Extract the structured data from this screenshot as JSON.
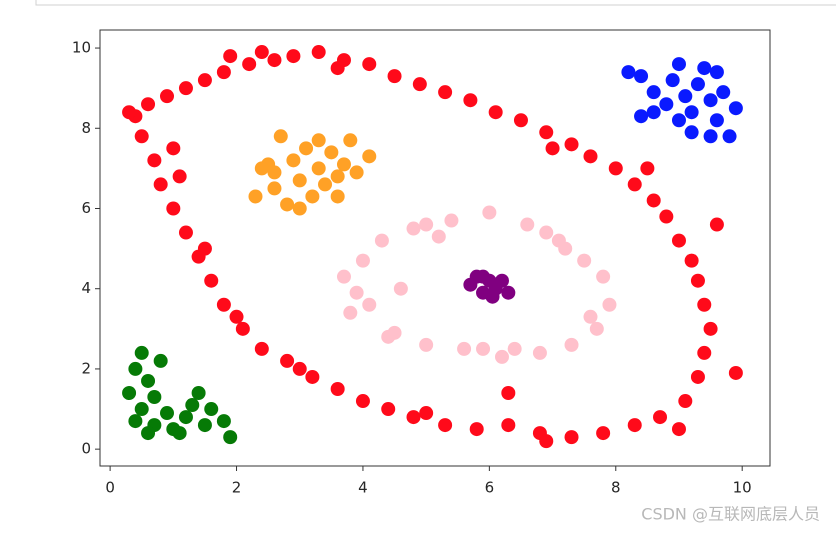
{
  "chart_data": {
    "type": "scatter",
    "xlim": [
      -0.16,
      10.44
    ],
    "ylim": [
      -0.42,
      10.45
    ],
    "xticks": [
      0,
      2,
      4,
      6,
      8,
      10
    ],
    "yticks": [
      0,
      2,
      4,
      6,
      8,
      10
    ],
    "series": [
      {
        "color": "#ff0a1a",
        "x": [
          0.4,
          0.6,
          0.9,
          1.2,
          1.5,
          1.8,
          2.2,
          2.6,
          2.9,
          3.3,
          3.7,
          4.1,
          4.5,
          4.9,
          5.3,
          5.7,
          6.1,
          6.5,
          6.9,
          7.3,
          7.6,
          8.0,
          8.3,
          8.6,
          8.8,
          9.0,
          9.2,
          9.3,
          9.4,
          9.5,
          9.4,
          9.3,
          9.1,
          8.7,
          8.3,
          7.8,
          7.3,
          6.8,
          6.3,
          5.8,
          5.3,
          4.8,
          4.4,
          4.0,
          3.6,
          3.2,
          2.8,
          2.4,
          2.1,
          1.8,
          1.6,
          1.4,
          1.2,
          1.0,
          0.8,
          0.7,
          0.5,
          1.0,
          1.1,
          1.5,
          2.0,
          3.0,
          5.0,
          6.9,
          8.5,
          9.6,
          9.9,
          6.3,
          2.4,
          1.9,
          3.6,
          7.0,
          9.0,
          0.3
        ],
        "values": [
          8.3,
          8.6,
          8.8,
          9.0,
          9.2,
          9.4,
          9.6,
          9.7,
          9.8,
          9.9,
          9.7,
          9.6,
          9.3,
          9.1,
          8.9,
          8.7,
          8.4,
          8.2,
          7.9,
          7.6,
          7.3,
          7.0,
          6.6,
          6.2,
          5.8,
          5.2,
          4.7,
          4.2,
          3.6,
          3.0,
          2.4,
          1.8,
          1.2,
          0.8,
          0.6,
          0.4,
          0.3,
          0.4,
          0.6,
          0.5,
          0.6,
          0.8,
          1.0,
          1.2,
          1.5,
          1.8,
          2.2,
          2.5,
          3.0,
          3.6,
          4.2,
          4.8,
          5.4,
          6.0,
          6.6,
          7.2,
          7.8,
          7.5,
          6.8,
          5.0,
          3.3,
          2.0,
          0.9,
          0.2,
          7.0,
          5.6,
          1.9,
          1.4,
          9.9,
          9.8,
          9.5,
          7.5,
          0.5,
          8.4
        ]
      },
      {
        "color": "#ffc0cb",
        "x": [
          4.0,
          4.1,
          4.3,
          4.5,
          4.8,
          5.0,
          5.4,
          5.6,
          6.0,
          6.2,
          6.6,
          6.8,
          7.1,
          7.3,
          7.5,
          7.7,
          7.8,
          7.9,
          3.9,
          3.8,
          4.6,
          5.2,
          6.9,
          7.6,
          5.9,
          4.4,
          3.7,
          6.4,
          7.2,
          5.0
        ],
        "values": [
          4.7,
          3.6,
          5.2,
          2.9,
          5.5,
          2.6,
          5.7,
          2.5,
          5.9,
          2.3,
          5.6,
          2.4,
          5.2,
          2.6,
          4.7,
          3.0,
          4.3,
          3.6,
          3.9,
          3.4,
          4.0,
          5.3,
          5.4,
          3.3,
          2.5,
          2.8,
          4.3,
          2.5,
          5.0,
          5.6
        ]
      },
      {
        "color": "#ffa126",
        "x": [
          2.3,
          2.5,
          2.6,
          2.7,
          2.8,
          2.9,
          3.0,
          3.1,
          3.2,
          3.3,
          3.4,
          3.5,
          3.6,
          3.7,
          3.8,
          3.9,
          4.1,
          2.6,
          3.0,
          3.3,
          2.4,
          3.6
        ],
        "values": [
          6.3,
          7.1,
          6.5,
          7.8,
          6.1,
          7.2,
          6.7,
          7.5,
          6.3,
          7.0,
          6.6,
          7.4,
          6.3,
          7.1,
          7.7,
          6.9,
          7.3,
          6.9,
          6.0,
          7.7,
          7.0,
          6.8
        ]
      },
      {
        "color": "#0a1aff",
        "x": [
          8.2,
          8.4,
          8.6,
          8.4,
          8.8,
          8.9,
          9.0,
          9.1,
          9.2,
          9.3,
          9.4,
          9.5,
          9.6,
          9.7,
          9.9,
          9.2,
          9.5,
          9.8,
          8.6,
          9.6,
          9.0
        ],
        "values": [
          9.4,
          9.3,
          8.9,
          8.3,
          8.6,
          9.2,
          9.6,
          8.8,
          8.4,
          9.1,
          9.5,
          8.7,
          8.2,
          8.9,
          8.5,
          7.9,
          7.8,
          7.8,
          8.4,
          9.4,
          8.2
        ]
      },
      {
        "color": "#067a06",
        "x": [
          0.5,
          0.4,
          0.6,
          0.3,
          0.5,
          0.4,
          0.7,
          0.9,
          1.0,
          1.2,
          1.3,
          1.5,
          1.6,
          1.8,
          1.9,
          0.7,
          0.6,
          1.4,
          0.8,
          1.1
        ],
        "values": [
          2.4,
          2.0,
          1.7,
          1.4,
          1.0,
          0.7,
          0.6,
          0.9,
          0.5,
          0.8,
          1.1,
          0.6,
          1.0,
          0.7,
          0.3,
          1.3,
          0.4,
          1.4,
          2.2,
          0.4
        ]
      },
      {
        "color": "#800080",
        "x": [
          5.7,
          5.8,
          5.9,
          6.0,
          6.1,
          6.2,
          6.3,
          5.9,
          6.05
        ],
        "values": [
          4.1,
          4.3,
          3.9,
          4.2,
          4.0,
          4.2,
          3.9,
          4.3,
          3.8
        ]
      }
    ]
  },
  "watermark": "CSDN @互联网底层人员"
}
